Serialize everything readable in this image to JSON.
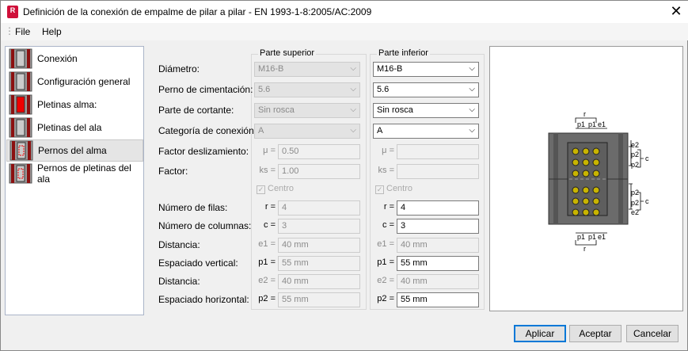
{
  "window": {
    "title": "Definición de la conexión de empalme de pilar a pilar - EN 1993-1-8:2005/AC:2009",
    "app_icon": "R",
    "close_icon": "close-icon"
  },
  "menu": [
    "File",
    "Help"
  ],
  "sidebar": {
    "items": [
      {
        "label": "Conexión",
        "icon": "connection-icon"
      },
      {
        "label": "Configuración general",
        "icon": "general-config-icon"
      },
      {
        "label": "Pletinas alma:",
        "icon": "web-plates-icon"
      },
      {
        "label": "Pletinas del ala",
        "icon": "flange-plates-icon"
      },
      {
        "label": "Pernos del alma",
        "icon": "web-bolts-icon",
        "selected": true
      },
      {
        "label": "Pernos de pletinas del ala",
        "icon": "flange-plate-bolts-icon"
      }
    ]
  },
  "form": {
    "labels": [
      "Diámetro:",
      "Perno de cimentación:",
      "Parte de cortante:",
      "Categoría de conexión:",
      "Factor deslizamiento:",
      "Factor:",
      "Número de filas:",
      "Número de columnas:",
      "Distancia:",
      "Espaciado vertical:",
      "Distancia:",
      "Espaciado horizontal:"
    ],
    "upper": {
      "title": "Parte superior",
      "diameter": "M16-B",
      "bolt_class": "5.6",
      "shear_part": "Sin rosca",
      "category": "A",
      "mu_label": "μ =",
      "mu": "0.50",
      "ks_label": "ks =",
      "ks": "1.00",
      "centro": "Centro",
      "centro_checked": true,
      "r_label": "r =",
      "r": "4",
      "c_label": "c =",
      "c": "3",
      "e1_label": "e1 =",
      "e1": "40 mm",
      "p1_label": "p1 =",
      "p1": "55 mm",
      "e2_label": "e2 =",
      "e2": "40 mm",
      "p2_label": "p2 =",
      "p2": "55 mm"
    },
    "lower": {
      "title": "Parte inferior",
      "diameter": "M16-B",
      "bolt_class": "5.6",
      "shear_part": "Sin rosca",
      "category": "A",
      "mu_label": "μ =",
      "mu": "",
      "ks_label": "ks =",
      "ks": "",
      "centro": "Centro",
      "centro_checked": true,
      "r_label": "r =",
      "r": "4",
      "c_label": "c =",
      "c": "3",
      "e1_label": "e1 =",
      "e1": "40 mm",
      "p1_label": "p1 =",
      "p1": "55 mm",
      "e2_label": "e2 =",
      "e2": "40 mm",
      "p2_label": "p2 =",
      "p2": "55 mm"
    }
  },
  "diagram": {
    "r": "r",
    "p1": "p1",
    "e1": "e1",
    "e2": "e2",
    "p2": "p2",
    "c": "c",
    "bolt_color": "#c8b400",
    "steel_color": "#6b6b6b"
  },
  "buttons": {
    "apply": "Aplicar",
    "ok": "Aceptar",
    "cancel": "Cancelar"
  }
}
